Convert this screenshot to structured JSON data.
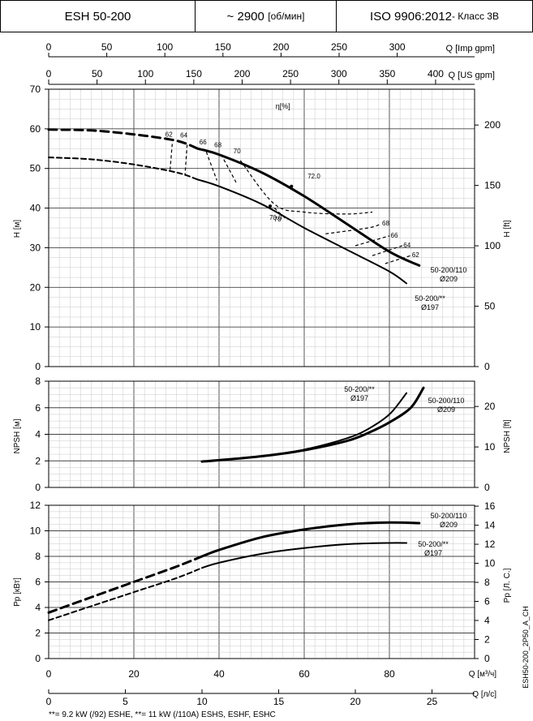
{
  "header": {
    "model": "ESH 50-200",
    "speed_prefix": "~ 2900",
    "speed_unit": "[об/мин]",
    "standard": "ISO 9906:2012",
    "standard_class": " - Класс 3В"
  },
  "axes": {
    "imp_gpm_label": "Q [Imp gpm]",
    "imp_gpm_ticks": [
      "0",
      "50",
      "100",
      "150",
      "200",
      "250",
      "300"
    ],
    "us_gpm_label": "Q [US gpm]",
    "us_gpm_ticks": [
      "0",
      "50",
      "100",
      "150",
      "200",
      "250",
      "300",
      "350",
      "400"
    ],
    "m3h_label": "Q [м³/ч]",
    "m3h_ticks": [
      "0",
      "20",
      "40",
      "60",
      "80"
    ],
    "ls_label": "Q [л/с]",
    "ls_ticks": [
      "0",
      "5",
      "10",
      "15",
      "20",
      "25"
    ],
    "h_m_label": "H [м]",
    "h_ft_label": "H [ft]",
    "npsh_m_label": "NPSH [м]",
    "npsh_ft_label": "NPSH [ft]",
    "p_kw_label": "Pp [кВт]",
    "p_hp_label": "Pp [Л. С.]",
    "eta_label": "η[%]"
  },
  "footer": {
    "note": "**= 9.2 kW (/92) ESHE,  **= 11 kW (/110A) ESHS, ESHF, ESHC",
    "code": "ESH50-200_2P50_A_CH"
  },
  "chart_data": [
    {
      "type": "line",
      "title": "",
      "xlabel": "Q [м³/ч]",
      "ylabel": "H [м]",
      "ylabel_right": "H [ft]",
      "xlim": [
        0,
        100
      ],
      "ylim": [
        0,
        70
      ],
      "y_right_ticks": [
        0,
        50,
        100,
        150,
        200
      ],
      "grid": true,
      "series": [
        {
          "name": "50-200/110",
          "label": "50-200/110",
          "label2": "Ø209",
          "style": "solid",
          "x": [
            35,
            40,
            50,
            60,
            70,
            80,
            87
          ],
          "y": [
            55,
            53.5,
            49,
            43,
            36,
            29,
            25.5
          ]
        },
        {
          "name": "50-200/110",
          "style": "dashed",
          "x": [
            0,
            10,
            20,
            30,
            35
          ],
          "y": [
            59.8,
            59.6,
            58.6,
            57,
            55
          ]
        },
        {
          "name": "50-200/**",
          "label": "50-200/**",
          "label2": "Ø197",
          "style": "solid",
          "x": [
            35,
            40,
            50,
            60,
            70,
            80,
            84
          ],
          "y": [
            47.2,
            45.5,
            41,
            35,
            29.5,
            24,
            21
          ]
        },
        {
          "name": "50-200/**",
          "style": "dashed",
          "x": [
            0,
            10,
            20,
            30,
            35
          ],
          "y": [
            52.8,
            52.3,
            51,
            49,
            47.2
          ]
        }
      ],
      "efficiency_iso": [
        {
          "label": "62",
          "x": [
            29,
            28.5
          ],
          "y": [
            56.2,
            49.5
          ]
        },
        {
          "label": "64",
          "x": [
            32.5,
            32
          ],
          "y": [
            56,
            48.2
          ]
        },
        {
          "label": "66",
          "x": [
            37,
            39.5
          ],
          "y": [
            54.2,
            47
          ]
        },
        {
          "label": "68",
          "x": [
            40.5,
            44
          ],
          "y": [
            53.5,
            46.5
          ]
        },
        {
          "label": "70",
          "x": [
            45,
            53,
            60,
            70,
            76
          ],
          "y": [
            52,
            41,
            39,
            38.5,
            39
          ]
        },
        {
          "label": "70",
          "x": [
            53,
            56
          ],
          "y": [
            40,
            37
          ]
        },
        {
          "label": "68",
          "x": [
            65,
            75,
            78
          ],
          "y": [
            33.5,
            35,
            36
          ]
        },
        {
          "label": "66",
          "x": [
            72,
            80
          ],
          "y": [
            30.5,
            33
          ]
        },
        {
          "label": "64",
          "x": [
            76,
            83
          ],
          "y": [
            28,
            30.5
          ]
        },
        {
          "label": "62",
          "x": [
            79,
            85
          ],
          "y": [
            26,
            28
          ]
        }
      ],
      "bep_labels": [
        {
          "label": "72.0",
          "x": 60,
          "y": 47.5
        },
        {
          "label": "70.0",
          "x": 51,
          "y": 37
        }
      ]
    },
    {
      "type": "line",
      "title": "",
      "xlabel": "Q [м³/ч]",
      "ylabel": "NPSH [м]",
      "ylabel_right": "NPSH [ft]",
      "xlim": [
        0,
        100
      ],
      "ylim": [
        0,
        8
      ],
      "y_right_ticks": [
        0,
        10,
        20
      ],
      "grid": true,
      "series": [
        {
          "name": "50-200/110",
          "label": "50-200/110",
          "label2": "Ø209",
          "style": "solid",
          "x": [
            36,
            40,
            50,
            60,
            70,
            75,
            80,
            85,
            88
          ],
          "y": [
            1.95,
            2.05,
            2.35,
            2.8,
            3.5,
            4.1,
            4.9,
            6.0,
            7.5
          ]
        },
        {
          "name": "50-200/**",
          "label": "50-200/**",
          "label2": "Ø197",
          "style": "solid",
          "x": [
            36,
            40,
            50,
            60,
            70,
            75,
            80,
            84
          ],
          "y": [
            1.95,
            2.05,
            2.35,
            2.85,
            3.7,
            4.4,
            5.5,
            7.1
          ]
        }
      ]
    },
    {
      "type": "line",
      "title": "",
      "xlabel": "Q [м³/ч]",
      "ylabel": "Pp [кВт]",
      "ylabel_right": "Pp [Л. С.]",
      "xlim": [
        0,
        100
      ],
      "ylim": [
        0,
        12
      ],
      "y_right_ticks": [
        0,
        2,
        4,
        6,
        8,
        10,
        12,
        14,
        16
      ],
      "grid": true,
      "series": [
        {
          "name": "50-200/110",
          "label": "50-200/110",
          "label2": "Ø209",
          "style": "solid",
          "x": [
            36,
            40,
            50,
            60,
            70,
            80,
            87
          ],
          "y": [
            8,
            8.5,
            9.5,
            10.1,
            10.5,
            10.65,
            10.6
          ]
        },
        {
          "name": "50-200/110",
          "style": "dashed",
          "x": [
            0,
            10,
            20,
            30,
            36
          ],
          "y": [
            3.6,
            4.8,
            6,
            7.2,
            8
          ]
        },
        {
          "name": "50-200/**",
          "label": "50-200/**",
          "label2": "Ø197",
          "style": "solid",
          "x": [
            36,
            40,
            50,
            60,
            70,
            80,
            84
          ],
          "y": [
            7.1,
            7.5,
            8.2,
            8.65,
            8.95,
            9.05,
            9.05
          ]
        },
        {
          "name": "50-200/**",
          "style": "dashed",
          "x": [
            0,
            10,
            20,
            30,
            36
          ],
          "y": [
            3.0,
            4.1,
            5.2,
            6.3,
            7.1
          ]
        }
      ]
    }
  ]
}
